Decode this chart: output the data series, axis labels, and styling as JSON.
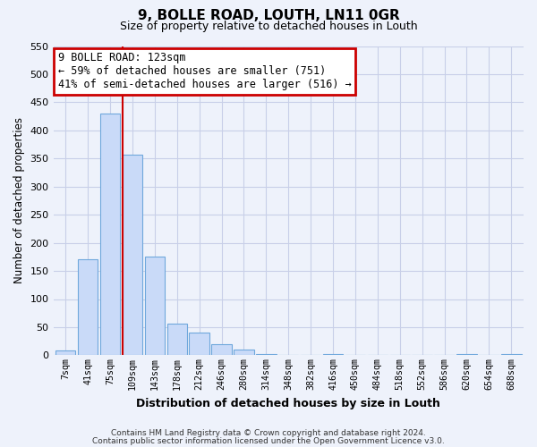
{
  "title": "9, BOLLE ROAD, LOUTH, LN11 0GR",
  "subtitle": "Size of property relative to detached houses in Louth",
  "xlabel": "Distribution of detached houses by size in Louth",
  "ylabel": "Number of detached properties",
  "bar_labels": [
    "7sqm",
    "41sqm",
    "75sqm",
    "109sqm",
    "143sqm",
    "178sqm",
    "212sqm",
    "246sqm",
    "280sqm",
    "314sqm",
    "348sqm",
    "382sqm",
    "416sqm",
    "450sqm",
    "484sqm",
    "518sqm",
    "552sqm",
    "586sqm",
    "620sqm",
    "654sqm",
    "688sqm"
  ],
  "bar_values": [
    8,
    170,
    430,
    357,
    175,
    57,
    40,
    20,
    10,
    3,
    0,
    0,
    3,
    0,
    0,
    0,
    0,
    0,
    2,
    0,
    2
  ],
  "bar_color": "#c9daf8",
  "bar_edge_color": "#6fa8dc",
  "vline_index": 3,
  "vline_color": "#cc0000",
  "ylim": [
    0,
    550
  ],
  "yticks": [
    0,
    50,
    100,
    150,
    200,
    250,
    300,
    350,
    400,
    450,
    500,
    550
  ],
  "annotation_title": "9 BOLLE ROAD: 123sqm",
  "annotation_line1": "← 59% of detached houses are smaller (751)",
  "annotation_line2": "41% of semi-detached houses are larger (516) →",
  "annotation_box_color": "#ffffff",
  "annotation_box_edge": "#cc0000",
  "footer1": "Contains HM Land Registry data © Crown copyright and database right 2024.",
  "footer2": "Contains public sector information licensed under the Open Government Licence v3.0.",
  "background_color": "#eef2fb",
  "grid_color": "#c8cfe8"
}
